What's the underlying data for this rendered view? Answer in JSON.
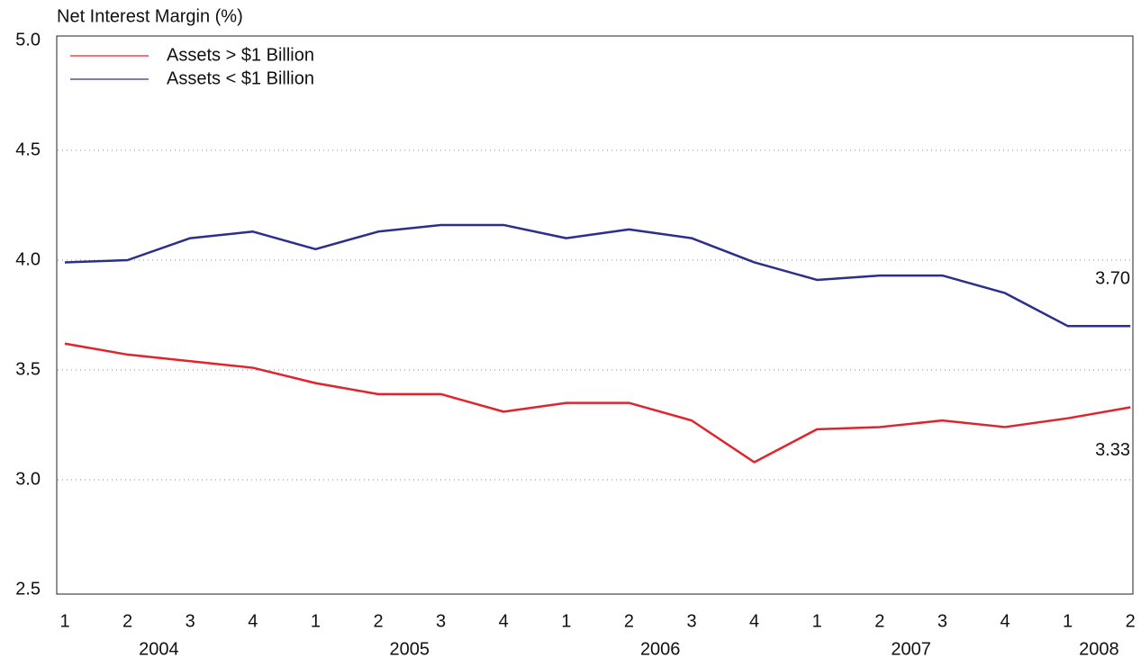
{
  "chart_data": {
    "type": "line",
    "title": "Net Interest Margin (%)",
    "categories": [
      "1",
      "2",
      "3",
      "4",
      "1",
      "2",
      "3",
      "4",
      "1",
      "2",
      "3",
      "4",
      "1",
      "2",
      "3",
      "4",
      "1",
      "2"
    ],
    "years": [
      "2004",
      "2005",
      "2006",
      "2007",
      "2008"
    ],
    "series": [
      {
        "name": "Assets > $1 Billion",
        "color": "#e3232c",
        "values": [
          3.62,
          3.57,
          3.54,
          3.51,
          3.44,
          3.39,
          3.39,
          3.31,
          3.35,
          3.35,
          3.27,
          3.08,
          3.23,
          3.24,
          3.27,
          3.24,
          3.28,
          3.33
        ]
      },
      {
        "name": "Assets < $1 Billion",
        "color": "#2b2e8a",
        "values": [
          3.99,
          4.0,
          4.1,
          4.13,
          4.05,
          4.13,
          4.16,
          4.16,
          4.1,
          4.14,
          4.1,
          3.99,
          3.91,
          3.93,
          3.93,
          3.85,
          3.7,
          3.7
        ]
      }
    ],
    "annotations": [
      {
        "series": 1,
        "text": "3.70"
      },
      {
        "series": 0,
        "text": "3.33"
      }
    ],
    "ylim": [
      2.5,
      5.0
    ],
    "yticks": [
      2.5,
      {
        "value": 3.0,
        "label": "3.0"
      },
      3.5,
      {
        "value": 4.0,
        "label": "4.0"
      },
      4.5,
      {
        "value": 5.0,
        "label": "5.0"
      }
    ],
    "grid": true,
    "legend": "top-left"
  }
}
